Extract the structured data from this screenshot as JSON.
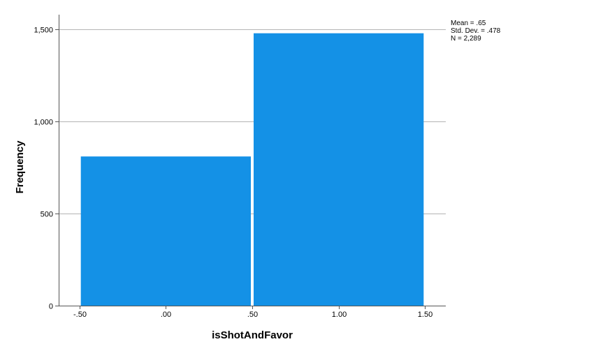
{
  "chart_data": {
    "type": "bar",
    "title": "",
    "xlabel": "isShotAndFavor",
    "ylabel": "Frequency",
    "bins": [
      {
        "from": -0.5,
        "to": 0.5,
        "count": 810
      },
      {
        "from": 0.5,
        "to": 1.5,
        "count": 1479
      }
    ],
    "xlim": [
      -0.62,
      1.62
    ],
    "ylim": [
      0,
      1580
    ],
    "x_ticks": [
      {
        "value": -0.5,
        "label": "-.50"
      },
      {
        "value": 0.0,
        "label": ".00"
      },
      {
        "value": 0.5,
        "label": ".50"
      },
      {
        "value": 1.0,
        "label": "1.00"
      },
      {
        "value": 1.5,
        "label": "1.50"
      }
    ],
    "y_ticks": [
      {
        "value": 0,
        "label": "0"
      },
      {
        "value": 500,
        "label": "500"
      },
      {
        "value": 1000,
        "label": "1,000"
      },
      {
        "value": 1500,
        "label": "1,500"
      }
    ],
    "grid": "horizontal",
    "bar_color": "#1491e6",
    "stats": {
      "mean": "Mean = .65",
      "std": "Std. Dev. = .478",
      "n": "N = 2,289"
    }
  }
}
